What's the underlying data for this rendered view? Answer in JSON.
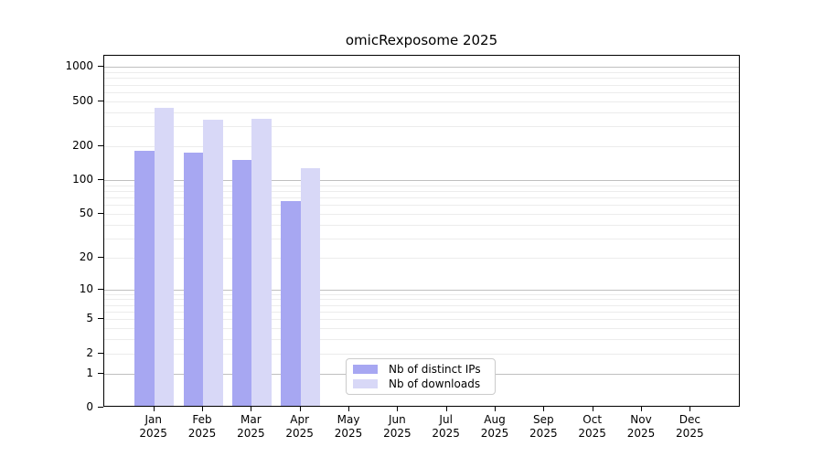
{
  "title": "omicRexposome 2025",
  "legend": {
    "items": [
      {
        "label": "Nb of distinct IPs",
        "color": "#a7a7f2"
      },
      {
        "label": "Nb of downloads",
        "color": "#d8d8f7"
      }
    ]
  },
  "chart_data": {
    "type": "bar",
    "title": "omicRexposome 2025",
    "categories": [
      "Jan 2025",
      "Feb 2025",
      "Mar 2025",
      "Apr 2025",
      "May 2025",
      "Jun 2025",
      "Jul 2025",
      "Aug 2025",
      "Sep 2025",
      "Oct 2025",
      "Nov 2025",
      "Dec 2025"
    ],
    "series": [
      {
        "name": "Nb of distinct IPs",
        "color": "#a7a7f2",
        "values": [
          174,
          170,
          146,
          63,
          null,
          null,
          null,
          null,
          null,
          null,
          null,
          null
        ]
      },
      {
        "name": "Nb of downloads",
        "color": "#d8d8f7",
        "values": [
          420,
          328,
          334,
          124,
          null,
          null,
          null,
          null,
          null,
          null,
          null,
          null
        ]
      }
    ],
    "xlabel": "",
    "ylabel": "",
    "yticks": [
      0,
      1,
      2,
      5,
      10,
      20,
      50,
      100,
      200,
      500,
      1000
    ],
    "yscale": "log1p",
    "ylim": [
      0,
      1258
    ],
    "grid": {
      "major_color": "#c0c0c0",
      "minor_color": "#ececec",
      "grid_on": true
    },
    "legend_position": "lower center"
  }
}
